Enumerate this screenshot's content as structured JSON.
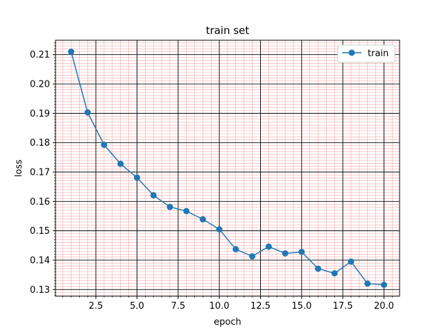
{
  "chart_data": {
    "type": "line",
    "title": "train set",
    "xlabel": "epoch",
    "ylabel": "loss",
    "xlim": [
      0.05,
      20.95
    ],
    "ylim": [
      0.1277,
      0.2149
    ],
    "x_ticks": [
      2.5,
      5.0,
      7.5,
      10.0,
      12.5,
      15.0,
      17.5,
      20.0
    ],
    "x_tick_labels": [
      "2.5",
      "5.0",
      "7.5",
      "10.0",
      "12.5",
      "15.0",
      "17.5",
      "20.0"
    ],
    "y_ticks": [
      0.13,
      0.14,
      0.15,
      0.16,
      0.17,
      0.18,
      0.19,
      0.2,
      0.21
    ],
    "y_tick_labels": [
      "0.13",
      "0.14",
      "0.15",
      "0.16",
      "0.17",
      "0.18",
      "0.19",
      "0.20",
      "0.21"
    ],
    "grid": {
      "major": true,
      "minor": true,
      "major_color": "#000000",
      "minor_color": "#f4a6a6"
    },
    "legend": {
      "position": "top-right"
    },
    "series": [
      {
        "name": "train",
        "color": "#1f77b4",
        "marker": "circle",
        "x": [
          1,
          2,
          3,
          4,
          5,
          6,
          7,
          8,
          9,
          10,
          11,
          12,
          13,
          14,
          15,
          16,
          17,
          18,
          19,
          20
        ],
        "y": [
          0.211,
          0.1903,
          0.1793,
          0.1728,
          0.1681,
          0.1621,
          0.1581,
          0.1567,
          0.1539,
          0.1505,
          0.1437,
          0.1413,
          0.1446,
          0.1423,
          0.1428,
          0.1371,
          0.1355,
          0.1395,
          0.132,
          0.1316
        ]
      }
    ]
  }
}
